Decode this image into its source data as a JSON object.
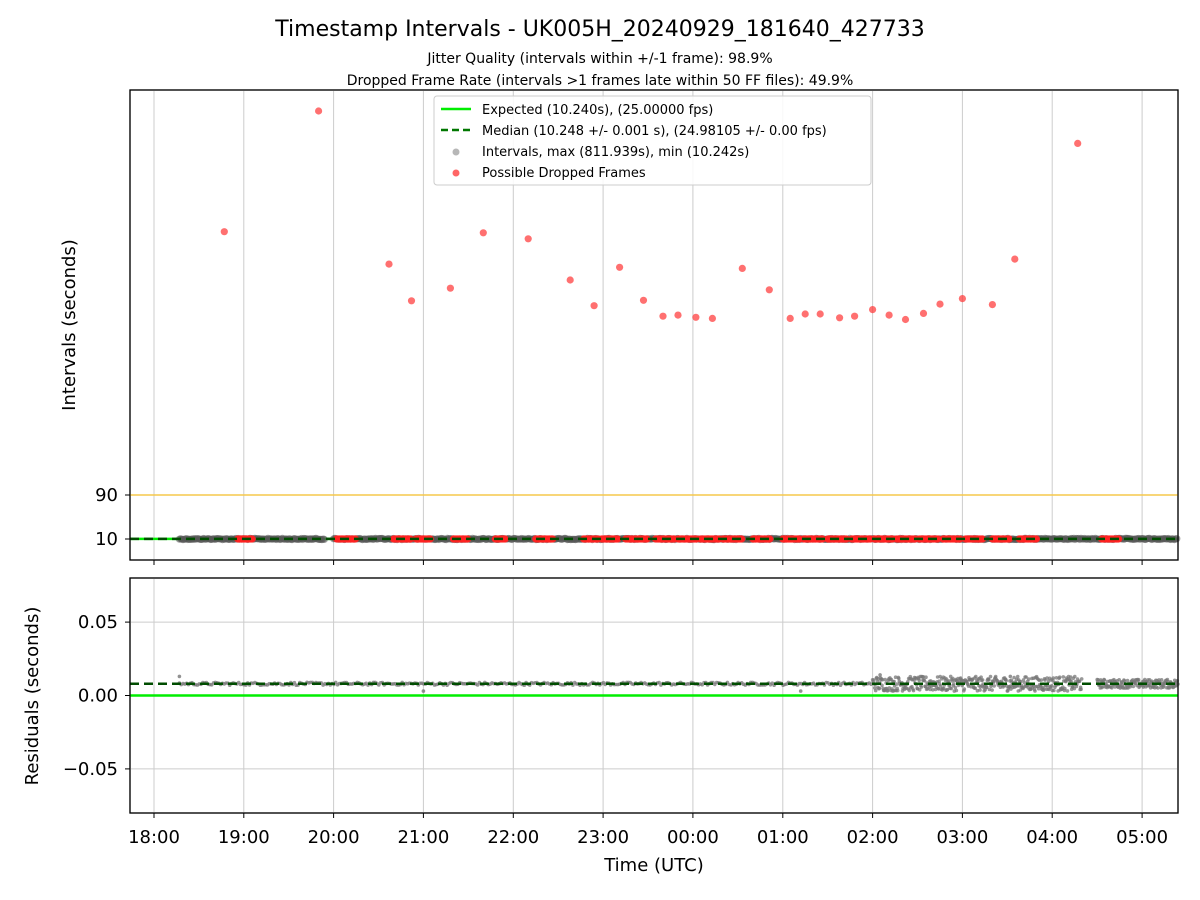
{
  "chart_data": {
    "title": "Timestamp Intervals - UK005H_20240929_181640_427733",
    "subtitles": [
      "Jitter Quality (intervals within +/-1 frame): 98.9%",
      "Dropped Frame Rate (intervals >1 frames late within 50 FF files): 49.9%"
    ],
    "x_axis": {
      "label": "Time (UTC)",
      "range": [
        "2024-09-29 17:44",
        "2024-09-30 05:24"
      ],
      "tick_labels": [
        "18:00",
        "19:00",
        "20:00",
        "21:00",
        "22:00",
        "23:00",
        "00:00",
        "01:00",
        "02:00",
        "03:00",
        "04:00",
        "05:00"
      ],
      "grid": true
    },
    "panels": [
      {
        "name": "intervals",
        "type": "scatter",
        "ylabel": "Intervals (seconds)",
        "y_tick_labels": [
          "10",
          "90"
        ],
        "threshold_line": {
          "value": 90,
          "color": "#f5c84c"
        },
        "legend_position": "top-center",
        "legend": [
          {
            "label": "Expected (10.240s), (25.00000 fps)",
            "style": "solid-line",
            "color": "#00ee00"
          },
          {
            "label": "Median (10.248 +/- 0.001 s), (24.98105 +/- 0.00 fps)",
            "style": "dashed-line",
            "color": "#007700"
          },
          {
            "label": "Intervals, max (811.939s), min (10.242s)",
            "style": "marker",
            "color": "#999999"
          },
          {
            "label": "Possible Dropped Frames",
            "style": "marker",
            "color": "#ff3333"
          }
        ],
        "expected_value": 10.24,
        "median_value": 10.248,
        "normal_interval_segments": [
          [
            "2024-09-29 18:17",
            "2024-09-29 19:54"
          ],
          [
            "2024-09-29 20:00",
            "2024-09-30 05:24"
          ]
        ],
        "dropped_frame_clusters": [
          [
            "2024-09-29 18:56",
            "2024-09-29 19:06"
          ],
          [
            "2024-09-29 20:02",
            "2024-09-29 20:15"
          ],
          [
            "2024-09-29 20:40",
            "2024-09-29 20:52"
          ],
          [
            "2024-09-29 20:55",
            "2024-09-29 21:05"
          ],
          [
            "2024-09-29 21:20",
            "2024-09-29 21:30"
          ],
          [
            "2024-09-29 21:48",
            "2024-09-29 21:55"
          ],
          [
            "2024-09-29 22:15",
            "2024-09-29 22:27"
          ],
          [
            "2024-09-29 22:47",
            "2024-09-29 22:57"
          ],
          [
            "2024-09-29 22:59",
            "2024-09-29 23:10"
          ],
          [
            "2024-09-29 23:15",
            "2024-09-29 23:30"
          ],
          [
            "2024-09-29 23:35",
            "2024-09-29 23:48"
          ],
          [
            "2024-09-29 23:50",
            "2024-09-30 00:03"
          ],
          [
            "2024-09-30 00:05",
            "2024-09-30 00:18"
          ],
          [
            "2024-09-30 00:20",
            "2024-09-30 00:33"
          ],
          [
            "2024-09-30 00:40",
            "2024-09-30 00:52"
          ],
          [
            "2024-09-30 01:00",
            "2024-09-30 01:12"
          ],
          [
            "2024-09-30 01:14",
            "2024-09-30 01:27"
          ],
          [
            "2024-09-30 01:30",
            "2024-09-30 01:43"
          ],
          [
            "2024-09-30 01:46",
            "2024-09-30 01:59"
          ],
          [
            "2024-09-30 02:01",
            "2024-09-30 02:14"
          ],
          [
            "2024-09-30 02:16",
            "2024-09-30 02:29"
          ],
          [
            "2024-09-30 02:31",
            "2024-09-30 02:44"
          ],
          [
            "2024-09-30 02:47",
            "2024-09-30 02:59"
          ],
          [
            "2024-09-30 03:02",
            "2024-09-30 03:14"
          ],
          [
            "2024-09-30 03:20",
            "2024-09-30 03:32"
          ],
          [
            "2024-09-30 03:38",
            "2024-09-30 03:50"
          ],
          [
            "2024-09-30 04:33",
            "2024-09-30 04:45"
          ]
        ],
        "outliers": [
          {
            "x": "2024-09-29 18:47",
            "y": 570
          },
          {
            "x": "2024-09-29 19:50",
            "y": 790
          },
          {
            "x": "2024-09-29 20:37",
            "y": 511
          },
          {
            "x": "2024-09-29 20:52",
            "y": 444
          },
          {
            "x": "2024-09-29 21:18",
            "y": 467
          },
          {
            "x": "2024-09-29 21:40",
            "y": 568
          },
          {
            "x": "2024-09-29 22:10",
            "y": 557
          },
          {
            "x": "2024-09-29 22:38",
            "y": 482
          },
          {
            "x": "2024-09-29 22:54",
            "y": 435
          },
          {
            "x": "2024-09-29 23:11",
            "y": 505
          },
          {
            "x": "2024-09-29 23:27",
            "y": 445
          },
          {
            "x": "2024-09-29 23:40",
            "y": 416
          },
          {
            "x": "2024-09-29 23:50",
            "y": 418
          },
          {
            "x": "2024-09-30 00:02",
            "y": 414
          },
          {
            "x": "2024-09-30 00:13",
            "y": 412
          },
          {
            "x": "2024-09-30 00:33",
            "y": 503
          },
          {
            "x": "2024-09-30 00:51",
            "y": 464
          },
          {
            "x": "2024-09-30 01:05",
            "y": 412
          },
          {
            "x": "2024-09-30 01:15",
            "y": 420
          },
          {
            "x": "2024-09-30 01:25",
            "y": 420
          },
          {
            "x": "2024-09-30 01:38",
            "y": 413
          },
          {
            "x": "2024-09-30 01:48",
            "y": 416
          },
          {
            "x": "2024-09-30 02:00",
            "y": 428
          },
          {
            "x": "2024-09-30 02:11",
            "y": 418
          },
          {
            "x": "2024-09-30 02:22",
            "y": 410
          },
          {
            "x": "2024-09-30 02:34",
            "y": 421
          },
          {
            "x": "2024-09-30 02:45",
            "y": 438
          },
          {
            "x": "2024-09-30 03:00",
            "y": 448
          },
          {
            "x": "2024-09-30 03:20",
            "y": 437
          },
          {
            "x": "2024-09-30 03:35",
            "y": 520
          },
          {
            "x": "2024-09-30 04:17",
            "y": 731
          }
        ]
      },
      {
        "name": "residuals",
        "type": "scatter",
        "ylabel": "Residuals (seconds)",
        "ylim": [
          -0.08,
          0.08
        ],
        "y_ticks": [
          -0.05,
          0.0,
          0.05
        ],
        "y_tick_labels": [
          "−0.05",
          "0.00",
          "0.05"
        ],
        "expected_residual": 0.0,
        "median_residual": 0.008,
        "segments": [
          {
            "start": "2024-09-29 18:17",
            "end": "2024-09-30 02:00",
            "spread": 0.001
          },
          {
            "start": "2024-09-30 02:00",
            "end": "2024-09-30 04:20",
            "spread": 0.005
          },
          {
            "start": "2024-09-30 04:30",
            "end": "2024-09-30 05:24",
            "spread": 0.003
          }
        ],
        "max_residual": 0.014,
        "min_residual": 0.002
      }
    ]
  }
}
